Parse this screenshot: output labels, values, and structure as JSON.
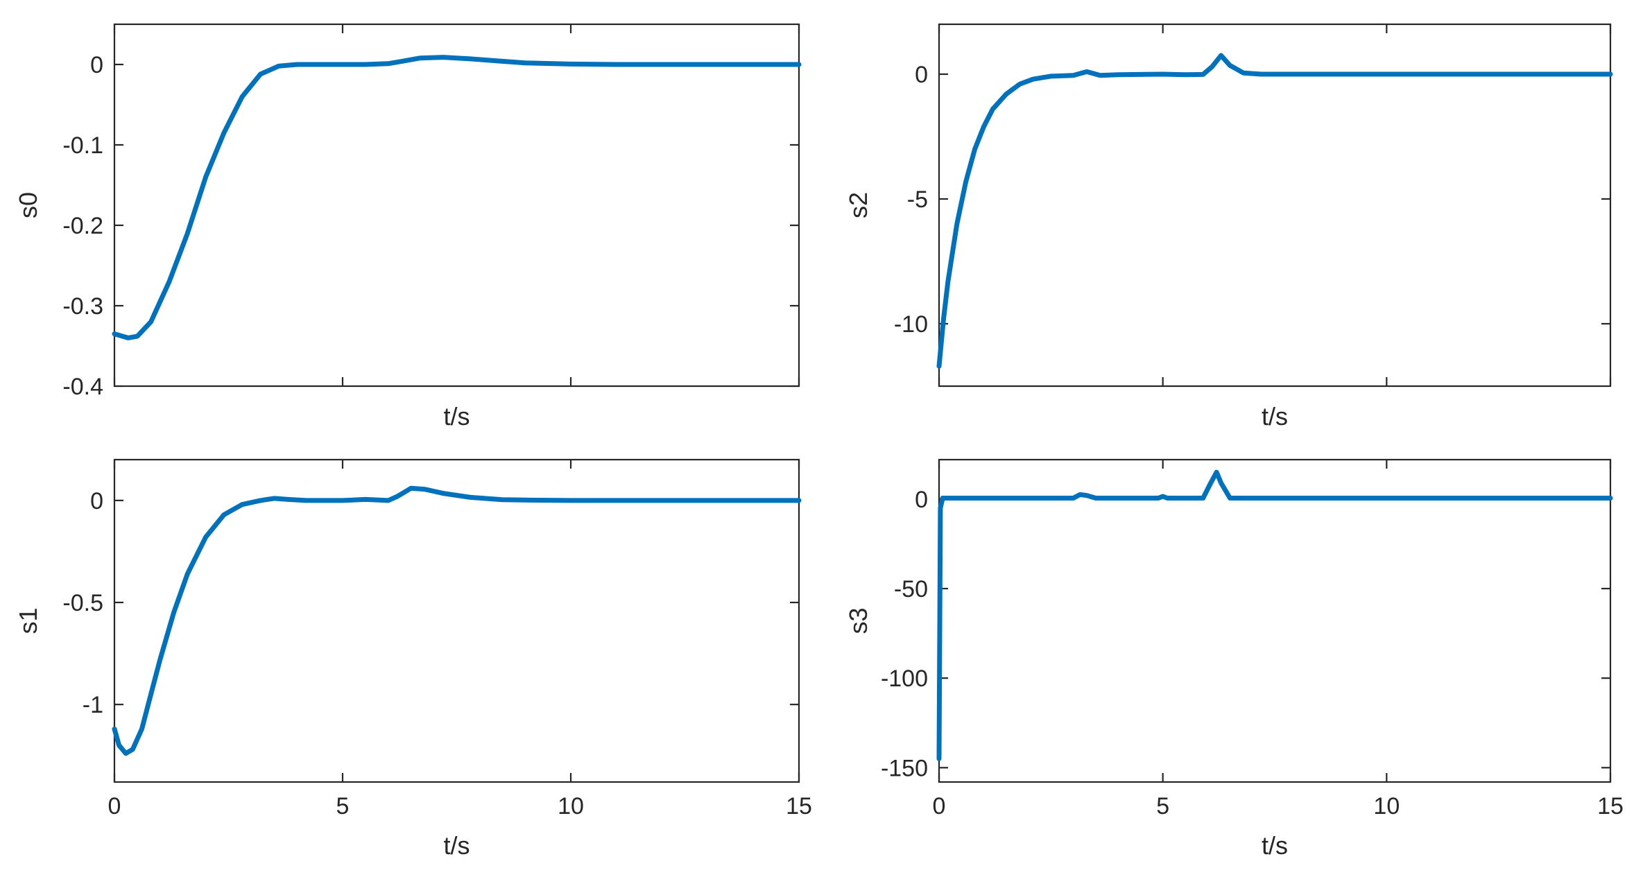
{
  "chart_data": [
    {
      "type": "line",
      "id": "s0",
      "xlabel": "t/s",
      "ylabel": "s0",
      "xlim": [
        0,
        15
      ],
      "ylim": [
        -0.4,
        0.05
      ],
      "xticks": [
        0,
        5,
        10,
        15
      ],
      "xtick_labels_shown": false,
      "yticks": [
        -0.4,
        -0.3,
        -0.2,
        -0.1,
        0
      ],
      "ytick_labels": [
        "-0.4",
        "-0.3",
        "-0.2",
        "-0.1",
        "0"
      ],
      "color": "#0072BD",
      "series": [
        {
          "x": [
            0,
            0.3,
            0.5,
            0.8,
            1.2,
            1.6,
            2.0,
            2.4,
            2.8,
            3.2,
            3.6,
            4.0,
            4.5,
            5.0,
            5.5,
            6.0,
            6.3,
            6.7,
            7.2,
            7.8,
            8.5,
            9.0,
            10.0,
            11.0,
            12.0,
            13.0,
            14.0,
            15.0
          ],
          "y": [
            -0.335,
            -0.34,
            -0.338,
            -0.32,
            -0.27,
            -0.21,
            -0.14,
            -0.085,
            -0.04,
            -0.012,
            -0.002,
            0.0,
            0.0,
            0.0,
            0.0,
            0.001,
            0.004,
            0.008,
            0.009,
            0.007,
            0.004,
            0.002,
            0.0005,
            0.0,
            0.0,
            0.0,
            0.0,
            0.0
          ]
        }
      ]
    },
    {
      "type": "line",
      "id": "s2",
      "xlabel": "t/s",
      "ylabel": "s2",
      "xlim": [
        0,
        15
      ],
      "ylim": [
        -12.5,
        2
      ],
      "xticks": [
        0,
        5,
        10,
        15
      ],
      "xtick_labels_shown": false,
      "yticks": [
        -10,
        -5,
        0
      ],
      "ytick_labels": [
        "-10",
        "-5",
        "0"
      ],
      "color": "#0072BD",
      "series": [
        {
          "x": [
            0,
            0.1,
            0.2,
            0.4,
            0.6,
            0.8,
            1.0,
            1.2,
            1.5,
            1.8,
            2.1,
            2.5,
            3.0,
            3.3,
            3.6,
            4.0,
            5.0,
            5.5,
            5.9,
            6.1,
            6.3,
            6.5,
            6.8,
            7.2,
            8.0,
            9.0,
            10.0,
            11.0,
            12.0,
            13.0,
            14.0,
            15.0
          ],
          "y": [
            -11.7,
            -9.8,
            -8.3,
            -6.0,
            -4.3,
            -3.0,
            -2.1,
            -1.4,
            -0.8,
            -0.4,
            -0.2,
            -0.08,
            -0.05,
            0.1,
            -0.05,
            -0.02,
            0.0,
            -0.02,
            -0.01,
            0.3,
            0.75,
            0.35,
            0.05,
            0.0,
            0.0,
            0.0,
            0.0,
            0.0,
            0.0,
            0.0,
            0.0,
            0.0
          ]
        }
      ]
    },
    {
      "type": "line",
      "id": "s1",
      "xlabel": "t/s",
      "ylabel": "s1",
      "xlim": [
        0,
        15
      ],
      "ylim": [
        -1.38,
        0.2
      ],
      "xticks": [
        0,
        5,
        10,
        15
      ],
      "xtick_labels": [
        "0",
        "5",
        "10",
        "15"
      ],
      "yticks": [
        -1,
        -0.5,
        0
      ],
      "ytick_labels": [
        "-1",
        "-0.5",
        "0"
      ],
      "color": "#0072BD",
      "series": [
        {
          "x": [
            0,
            0.1,
            0.25,
            0.4,
            0.6,
            0.8,
            1.0,
            1.3,
            1.6,
            2.0,
            2.4,
            2.8,
            3.2,
            3.5,
            3.8,
            4.2,
            5.0,
            5.5,
            6.0,
            6.2,
            6.5,
            6.8,
            7.2,
            7.8,
            8.5,
            9.0,
            10.0,
            11.0,
            12.0,
            13.0,
            14.0,
            15.0
          ],
          "y": [
            -1.12,
            -1.2,
            -1.24,
            -1.22,
            -1.12,
            -0.95,
            -0.78,
            -0.55,
            -0.36,
            -0.18,
            -0.07,
            -0.02,
            0.0,
            0.01,
            0.005,
            0.0,
            0.0,
            0.005,
            0.0,
            0.02,
            0.06,
            0.055,
            0.035,
            0.015,
            0.004,
            0.002,
            0.0,
            0.0,
            0.0,
            0.0,
            0.0,
            0.0
          ]
        }
      ]
    },
    {
      "type": "line",
      "id": "s3",
      "xlabel": "t/s",
      "ylabel": "s3",
      "xlim": [
        0,
        15
      ],
      "ylim": [
        -158,
        22
      ],
      "xticks": [
        0,
        5,
        10,
        15
      ],
      "xtick_labels": [
        "0",
        "5",
        "10",
        "15"
      ],
      "yticks": [
        -150,
        -100,
        -50,
        0
      ],
      "ytick_labels": [
        "-150",
        "-100",
        "-50",
        "0"
      ],
      "color": "#0072BD",
      "series": [
        {
          "x": [
            0,
            0.03,
            0.08,
            0.2,
            1.0,
            2.0,
            3.0,
            3.15,
            3.3,
            3.5,
            4.9,
            5.0,
            5.1,
            5.9,
            6.05,
            6.2,
            6.3,
            6.5,
            7.0,
            8.0,
            9.0,
            10.0,
            11.0,
            12.0,
            13.0,
            14.0,
            15.0
          ],
          "y": [
            -145,
            -5,
            0.5,
            0.5,
            0.5,
            0.5,
            0.5,
            2.5,
            2.0,
            0.5,
            0.5,
            1.5,
            0.5,
            0.5,
            8.0,
            15.0,
            9.0,
            0.5,
            0.5,
            0.5,
            0.5,
            0.5,
            0.5,
            0.5,
            0.5,
            0.5,
            0.5
          ]
        }
      ]
    }
  ]
}
